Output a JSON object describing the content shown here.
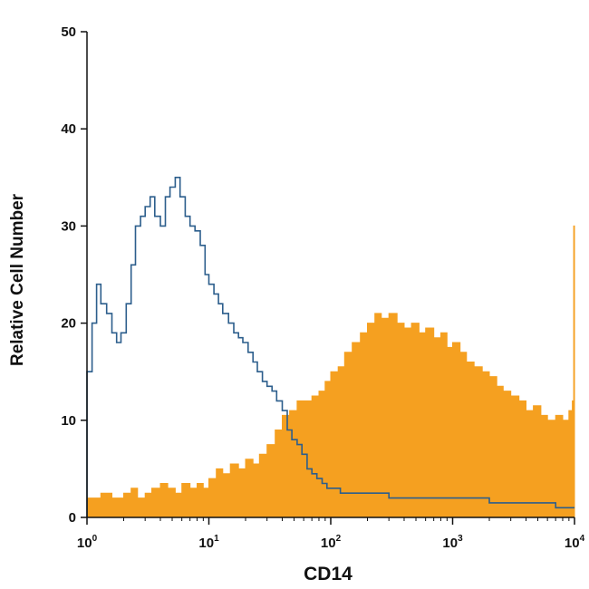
{
  "chart_data": {
    "type": "area",
    "xlabel": "CD14",
    "ylabel": "Relative Cell Number",
    "x_scale": "log",
    "xlim": [
      1,
      10000
    ],
    "ylim": [
      0,
      50
    ],
    "grid": false,
    "legend": "none",
    "y_ticks": [
      "0",
      "10",
      "20",
      "30",
      "40",
      "50"
    ],
    "x_ticks": [
      {
        "value": 1,
        "base": "10",
        "exp": "0"
      },
      {
        "value": 10,
        "base": "10",
        "exp": "1"
      },
      {
        "value": 100,
        "base": "10",
        "exp": "2"
      },
      {
        "value": 1000,
        "base": "10",
        "exp": "3"
      },
      {
        "value": 10000,
        "base": "10",
        "exp": "4"
      }
    ],
    "series": [
      {
        "kind": "filled",
        "color": "#F5A020",
        "x": [
          1,
          1.3,
          1.6,
          2.0,
          2.3,
          2.6,
          3.0,
          3.4,
          4.0,
          4.6,
          5.3,
          6.0,
          7.0,
          8.0,
          9.0,
          10,
          11.5,
          13,
          15,
          17.5,
          20,
          23,
          26,
          30,
          35,
          40,
          46,
          53,
          60,
          70,
          80,
          90,
          100,
          115,
          130,
          150,
          175,
          200,
          230,
          260,
          300,
          350,
          400,
          460,
          530,
          600,
          700,
          800,
          900,
          1000,
          1150,
          1300,
          1500,
          1750,
          2000,
          2300,
          2600,
          3000,
          3500,
          4000,
          4600,
          5300,
          6000,
          7000,
          8000,
          9000,
          9600,
          9850,
          10000
        ],
        "values": [
          2,
          2.5,
          2,
          2.5,
          3,
          2,
          2.5,
          3,
          3.5,
          3,
          2.5,
          3.5,
          3,
          3.5,
          3,
          4,
          5,
          4.5,
          5.5,
          5,
          6,
          5.5,
          6.5,
          7.5,
          9,
          10.5,
          11,
          12,
          12,
          12.5,
          13,
          14,
          15,
          15.5,
          17,
          18,
          19,
          20,
          21,
          20.5,
          21,
          20,
          19.5,
          20,
          19,
          19.5,
          18.5,
          19,
          17.5,
          18,
          17,
          16,
          15.5,
          15,
          14.5,
          13.5,
          13,
          12.5,
          12,
          11,
          11.5,
          10.5,
          10,
          10.5,
          10,
          11,
          12,
          30,
          0
        ]
      },
      {
        "kind": "outline",
        "color": "#2C5E8C",
        "x": [
          1,
          1.1,
          1.2,
          1.3,
          1.45,
          1.6,
          1.75,
          1.9,
          2.1,
          2.3,
          2.5,
          2.75,
          3.0,
          3.3,
          3.6,
          4.0,
          4.4,
          4.8,
          5.3,
          5.8,
          6.4,
          7.0,
          7.7,
          8.5,
          9.3,
          10,
          11,
          12,
          13,
          14.5,
          16,
          17.5,
          19,
          21,
          23,
          25,
          27.5,
          30,
          33,
          36,
          40,
          44,
          48,
          53,
          58,
          64,
          70,
          77,
          85,
          93,
          100,
          120,
          150,
          200,
          300,
          500,
          700,
          1000,
          1500,
          2000,
          3000,
          5000,
          7000,
          9000,
          10000
        ],
        "values": [
          15,
          20,
          24,
          22,
          21,
          19,
          18,
          19,
          22,
          26,
          30,
          31,
          32,
          33,
          31,
          30,
          33,
          34,
          35,
          33,
          31,
          30,
          29.5,
          28,
          25,
          24,
          23,
          22,
          21,
          20,
          19,
          18.5,
          18,
          17,
          16,
          15,
          14,
          13.5,
          13,
          12,
          11,
          9,
          8,
          7.5,
          6.5,
          5,
          4.5,
          4,
          3.5,
          3,
          3,
          2.5,
          2.5,
          2.5,
          2,
          2,
          2,
          2,
          2,
          1.5,
          1.5,
          1.5,
          1,
          1,
          1
        ]
      }
    ]
  }
}
